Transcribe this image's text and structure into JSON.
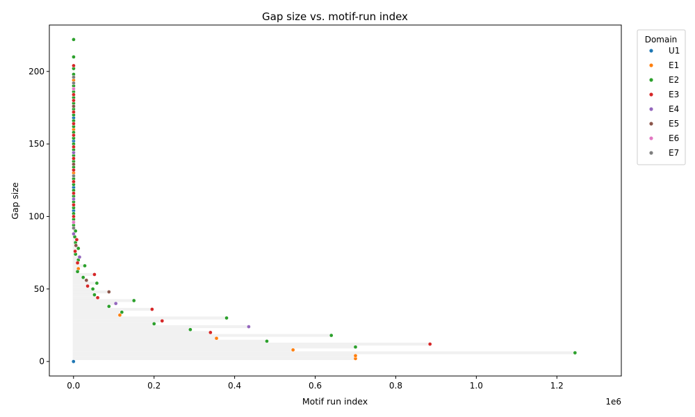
{
  "chart_data": {
    "type": "scatter",
    "title": "Gap size vs. motif-run index",
    "xlabel": "Motif run index",
    "ylabel": "Gap size",
    "x_offset_label": "1e6",
    "xlim": [
      -60000,
      1360000
    ],
    "ylim": [
      -10,
      232
    ],
    "x_ticks": [
      0,
      200000,
      400000,
      600000,
      800000,
      1000000,
      1200000
    ],
    "x_tick_labels": [
      "0.0",
      "0.2",
      "0.4",
      "0.6",
      "0.8",
      "1.0",
      "1.2"
    ],
    "y_ticks": [
      0,
      50,
      100,
      150,
      200
    ],
    "y_tick_labels": [
      "0",
      "50",
      "100",
      "150",
      "200"
    ],
    "grid": false,
    "legend": {
      "title": "Domain",
      "placement": "outside-right",
      "entries": [
        {
          "name": "U1",
          "color": "#1f77b4"
        },
        {
          "name": "E1",
          "color": "#ff7f0e"
        },
        {
          "name": "E2",
          "color": "#2ca02c"
        },
        {
          "name": "E3",
          "color": "#d62728"
        },
        {
          "name": "E4",
          "color": "#9467bd"
        },
        {
          "name": "E5",
          "color": "#8c564b"
        },
        {
          "name": "E6",
          "color": "#e377c2"
        },
        {
          "name": "E7",
          "color": "#7f7f7f"
        }
      ]
    },
    "series": [
      {
        "name": "U1",
        "color": "#1f77b4",
        "points": [
          [
            0,
            0
          ],
          [
            300,
            104
          ],
          [
            300,
            120
          ],
          [
            300,
            152
          ],
          [
            300,
            168
          ]
        ]
      },
      {
        "name": "E1",
        "color": "#ff7f0e",
        "points": [
          [
            700000,
            2
          ],
          [
            700000,
            4
          ],
          [
            545000,
            8
          ],
          [
            355000,
            16
          ],
          [
            115000,
            32
          ],
          [
            12000,
            64
          ],
          [
            300,
            126
          ],
          [
            300,
            130
          ],
          [
            300,
            160
          ],
          [
            300,
            194
          ]
        ]
      },
      {
        "name": "E2",
        "color": "#2ca02c",
        "points": [
          [
            1245000,
            6
          ],
          [
            700000,
            10
          ],
          [
            480000,
            14
          ],
          [
            640000,
            18
          ],
          [
            290000,
            22
          ],
          [
            200000,
            26
          ],
          [
            380000,
            30
          ],
          [
            120000,
            34
          ],
          [
            88000,
            38
          ],
          [
            150000,
            42
          ],
          [
            52000,
            46
          ],
          [
            48000,
            50
          ],
          [
            58000,
            54
          ],
          [
            24000,
            58
          ],
          [
            10000,
            62
          ],
          [
            28000,
            66
          ],
          [
            12000,
            70
          ],
          [
            5000,
            74
          ],
          [
            12000,
            78
          ],
          [
            5000,
            82
          ],
          [
            3000,
            86
          ],
          [
            5000,
            90
          ],
          [
            300,
            94
          ],
          [
            300,
            98
          ],
          [
            300,
            102
          ],
          [
            300,
            106
          ],
          [
            300,
            110
          ],
          [
            300,
            114
          ],
          [
            300,
            118
          ],
          [
            300,
            122
          ],
          [
            300,
            126
          ],
          [
            300,
            134
          ],
          [
            300,
            138
          ],
          [
            300,
            142
          ],
          [
            300,
            146
          ],
          [
            300,
            150
          ],
          [
            300,
            154
          ],
          [
            300,
            158
          ],
          [
            300,
            162
          ],
          [
            300,
            166
          ],
          [
            300,
            170
          ],
          [
            300,
            174
          ],
          [
            300,
            178
          ],
          [
            300,
            182
          ],
          [
            300,
            186
          ],
          [
            300,
            190
          ],
          [
            300,
            198
          ],
          [
            300,
            202
          ],
          [
            300,
            210
          ],
          [
            300,
            222
          ]
        ]
      },
      {
        "name": "E3",
        "color": "#d62728",
        "points": [
          [
            885000,
            12
          ],
          [
            340000,
            20
          ],
          [
            220000,
            28
          ],
          [
            195000,
            36
          ],
          [
            60000,
            44
          ],
          [
            35000,
            52
          ],
          [
            52000,
            60
          ],
          [
            10000,
            68
          ],
          [
            4000,
            76
          ],
          [
            8000,
            84
          ],
          [
            300,
            100
          ],
          [
            300,
            108
          ],
          [
            300,
            116
          ],
          [
            300,
            124
          ],
          [
            300,
            132
          ],
          [
            300,
            140
          ],
          [
            300,
            148
          ],
          [
            300,
            156
          ],
          [
            300,
            164
          ],
          [
            300,
            172
          ],
          [
            300,
            180
          ],
          [
            300,
            184
          ],
          [
            300,
            204
          ]
        ]
      },
      {
        "name": "E4",
        "color": "#9467bd",
        "points": [
          [
            435000,
            24
          ],
          [
            105000,
            40
          ],
          [
            15000,
            72
          ],
          [
            300,
            88
          ],
          [
            300,
            112
          ],
          [
            300,
            144
          ]
        ]
      },
      {
        "name": "E5",
        "color": "#8c564b",
        "points": [
          [
            88000,
            48
          ],
          [
            32000,
            56
          ],
          [
            6000,
            80
          ],
          [
            300,
            136
          ],
          [
            300,
            176
          ]
        ]
      },
      {
        "name": "E6",
        "color": "#e377c2",
        "points": [
          [
            300,
            96
          ],
          [
            300,
            188
          ]
        ]
      },
      {
        "name": "E7",
        "color": "#7f7f7f",
        "points": [
          [
            300,
            92
          ],
          [
            300,
            128
          ],
          [
            300,
            192
          ],
          [
            300,
            196
          ]
        ]
      }
    ]
  }
}
